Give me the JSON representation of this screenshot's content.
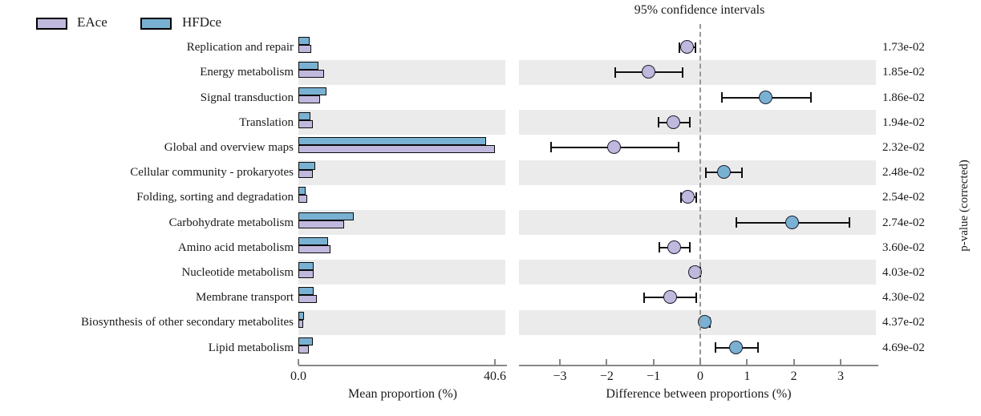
{
  "chart_data": {
    "type": "bar",
    "title": "95% confidence intervals",
    "legend": [
      {
        "label": "EAce",
        "color": "#c1b8dd"
      },
      {
        "label": "HFDce",
        "color": "#79b1d3"
      }
    ],
    "categories": [
      "Replication and repair",
      "Energy metabolism",
      "Signal transduction",
      "Translation",
      "Global and overview maps",
      "Cellular community - prokaryotes",
      "Folding, sorting and degradation",
      "Carbohydrate metabolism",
      "Amino acid metabolism",
      "Nucleotide metabolism",
      "Membrane transport",
      "Biosynthesis of other secondary metabolites",
      "Lipid metabolism"
    ],
    "series": [
      {
        "name": "EAce",
        "values": [
          2.6,
          5.3,
          4.4,
          3.0,
          40.6,
          3.0,
          1.75,
          9.4,
          6.6,
          3.2,
          3.85,
          1.0,
          2.1
        ]
      },
      {
        "name": "HFDce",
        "values": [
          2.3,
          4.2,
          5.8,
          2.45,
          38.8,
          3.5,
          1.5,
          11.4,
          6.05,
          3.1,
          3.2,
          1.1,
          2.9
        ]
      }
    ],
    "difference": [
      {
        "mean": -0.27,
        "lo": -0.44,
        "hi": -0.11,
        "enriched": "EAce"
      },
      {
        "mean": -1.09,
        "lo": -1.81,
        "hi": -0.38,
        "enriched": "EAce"
      },
      {
        "mean": 1.4,
        "lo": 0.46,
        "hi": 2.37,
        "enriched": "HFDce"
      },
      {
        "mean": -0.56,
        "lo": -0.9,
        "hi": -0.22,
        "enriched": "EAce"
      },
      {
        "mean": -1.83,
        "lo": -3.19,
        "hi": -0.46,
        "enriched": "EAce"
      },
      {
        "mean": 0.52,
        "lo": 0.12,
        "hi": 0.9,
        "enriched": "HFDce"
      },
      {
        "mean": -0.25,
        "lo": -0.42,
        "hi": -0.09,
        "enriched": "EAce"
      },
      {
        "mean": 1.98,
        "lo": 0.77,
        "hi": 3.19,
        "enriched": "HFDce"
      },
      {
        "mean": -0.55,
        "lo": -0.88,
        "hi": -0.23,
        "enriched": "EAce"
      },
      {
        "mean": -0.1,
        "lo": -0.2,
        "hi": 0.0,
        "enriched": "EAce"
      },
      {
        "mean": -0.64,
        "lo": -1.2,
        "hi": -0.08,
        "enriched": "EAce"
      },
      {
        "mean": 0.11,
        "lo": 0.0,
        "hi": 0.21,
        "enriched": "HFDce"
      },
      {
        "mean": 0.77,
        "lo": 0.32,
        "hi": 1.23,
        "enriched": "HFDce"
      }
    ],
    "p_values": [
      "1.73e-02",
      "1.85e-02",
      "1.86e-02",
      "1.94e-02",
      "2.32e-02",
      "2.48e-02",
      "2.54e-02",
      "2.74e-02",
      "3.60e-02",
      "4.03e-02",
      "4.30e-02",
      "4.37e-02",
      "4.69e-02"
    ],
    "left_panel": {
      "xlabel": "Mean proportion (%)",
      "xlim": [
        0,
        43.2
      ],
      "ticks": [
        {
          "v": 0,
          "label": "0.0"
        },
        {
          "v": 40.6,
          "label": "40.6"
        }
      ]
    },
    "right_panel": {
      "xlabel": "Difference between proportions (%)",
      "xlim": [
        -3.88,
        3.81
      ],
      "ticks": [
        {
          "v": -3,
          "label": "−3"
        },
        {
          "v": -2,
          "label": "−2"
        },
        {
          "v": -1,
          "label": "−1"
        },
        {
          "v": 0,
          "label": "0"
        },
        {
          "v": 1,
          "label": "1"
        },
        {
          "v": 2,
          "label": "2"
        },
        {
          "v": 3,
          "label": "3"
        }
      ],
      "zero_line": "dashed"
    },
    "pvalue_axis_label": "p-value (corrected)",
    "colors": {
      "eace": "#c1b8dd",
      "hfdce": "#79b1d3",
      "band": "#ebebeb",
      "axis": "#888888",
      "errorbar": "#111111"
    },
    "legend_position": "top-left",
    "grid": false
  }
}
